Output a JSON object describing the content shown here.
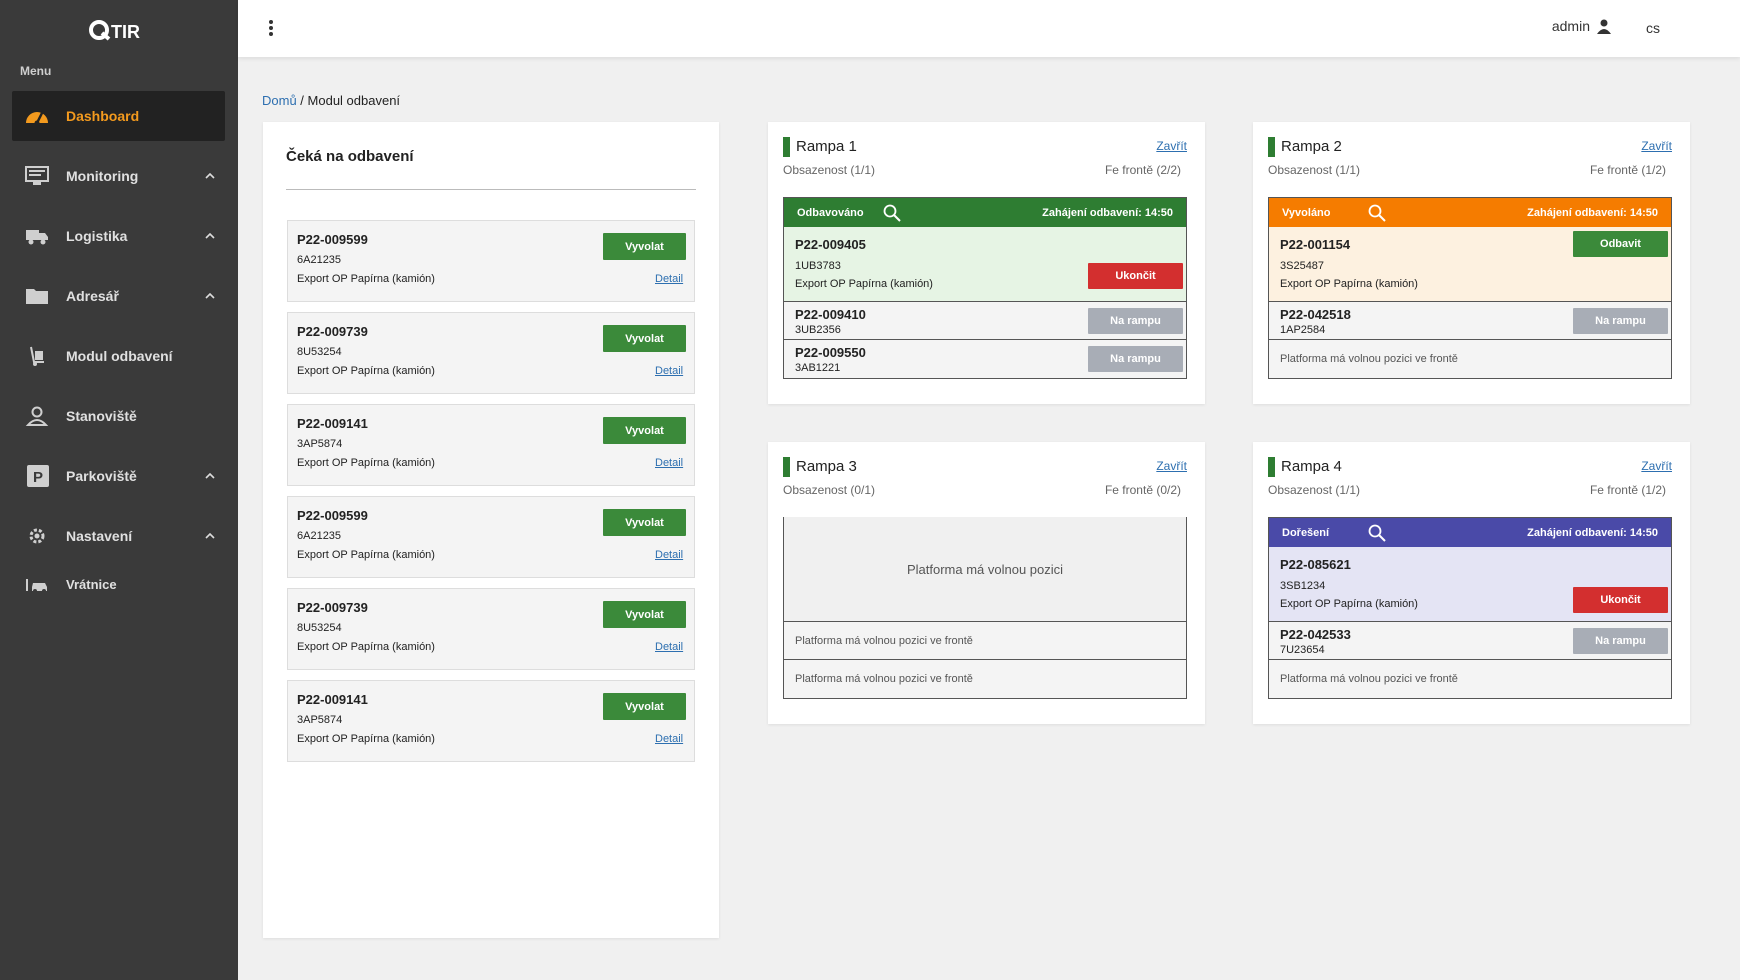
{
  "app": {
    "logo_text": "QTIR"
  },
  "sidebar": {
    "menu_label": "Menu",
    "items": [
      {
        "label": "Dashboard",
        "icon": "gauge-icon",
        "active": true,
        "expandable": false
      },
      {
        "label": "Monitoring",
        "icon": "monitor-icon",
        "expandable": true
      },
      {
        "label": "Logistika",
        "icon": "truck-icon",
        "expandable": true
      },
      {
        "label": "Adresář",
        "icon": "folder-icon",
        "expandable": true
      },
      {
        "label": "Modul odbavení",
        "icon": "hand-truck-icon",
        "expandable": false
      },
      {
        "label": "Stanoviště",
        "icon": "location-person-icon",
        "expandable": false
      },
      {
        "label": "Parkoviště",
        "icon": "parking-icon",
        "expandable": true
      },
      {
        "label": "Nastavení",
        "icon": "gear-icon",
        "expandable": true
      },
      {
        "label": "Vrátnice",
        "icon": "gate-car-icon",
        "expandable": false
      }
    ]
  },
  "topbar": {
    "user": "admin",
    "lang": "cs"
  },
  "breadcrumb": {
    "home": "Domů",
    "separator": " / ",
    "current": "Modul odbavení"
  },
  "waiting": {
    "title": "Čeká na odbavení",
    "call_label": "Vyvolat",
    "detail_label": "Detail",
    "items": [
      {
        "code": "P22-009599",
        "plate": "6A21235",
        "desc": "Export OP Papírna (kamión)"
      },
      {
        "code": "P22-009739",
        "plate": "8U53254",
        "desc": "Export OP Papírna (kamión)"
      },
      {
        "code": "P22-009141",
        "plate": "3AP5874",
        "desc": "Export OP Papírna (kamión)"
      },
      {
        "code": "P22-009599",
        "plate": "6A21235",
        "desc": "Export OP Papírna (kamión)"
      },
      {
        "code": "P22-009739",
        "plate": "8U53254",
        "desc": "Export OP Papírna (kamión)"
      },
      {
        "code": "P22-009141",
        "plate": "3AP5874",
        "desc": "Export OP Papírna (kamión)"
      }
    ]
  },
  "ramps": [
    {
      "name": "Rampa 1",
      "close": "Zavřít",
      "occupancy": "Obsazenost (1/1)",
      "queue": "Fe frontě (2/2)",
      "header_color": "#2e7d32",
      "status": "Odbavováno",
      "start": "Zahájení odbavení: 14:50",
      "active_bg": "#e6f4e4",
      "active": {
        "code": "P22-009405",
        "plate": "1UB3783",
        "desc": "Export OP Papírna (kamión)",
        "action": "Ukončit"
      },
      "queue_rows": [
        {
          "code": "P22-009410",
          "plate": "3UB2356",
          "action": "Na rampu"
        },
        {
          "code": "P22-009550",
          "plate": "3AB1221",
          "action": "Na rampu"
        }
      ]
    },
    {
      "name": "Rampa 2",
      "close": "Zavřít",
      "occupancy": "Obsazenost (1/1)",
      "queue": "Fe frontě (1/2)",
      "header_color": "#f57c00",
      "status": "Vyvoláno",
      "start": "Zahájení odbavení: 14:50",
      "active_bg": "#fdf1e0",
      "active": {
        "code": "P22-001154",
        "plate": "3S25487",
        "desc": "Export OP Papírna (kamión)",
        "action": "Odbavit"
      },
      "queue_rows": [
        {
          "code": "P22-042518",
          "plate": "1AP2584",
          "action": "Na rampu"
        },
        {
          "free": "Platforma má volnou pozici ve frontě"
        }
      ]
    },
    {
      "name": "Rampa 3",
      "close": "Zavřít",
      "occupancy": "Obsazenost (0/1)",
      "queue": "Fe frontě (0/2)",
      "free_main": "Platforma má volnou pozici",
      "queue_rows": [
        {
          "free": "Platforma má volnou pozici ve frontě"
        },
        {
          "free": "Platforma má volnou pozici ve frontě"
        }
      ]
    },
    {
      "name": "Rampa 4",
      "close": "Zavřít",
      "occupancy": "Obsazenost (1/1)",
      "queue": "Fe frontě (1/2)",
      "header_color": "#4a4aa8",
      "status": "Dořešení",
      "start": "Zahájení odbavení: 14:50",
      "active_bg": "#e4e4f4",
      "active": {
        "code": "P22-085621",
        "plate": "3SB1234",
        "desc": "Export OP Papírna (kamión)",
        "action": "Ukončit"
      },
      "queue_rows": [
        {
          "code": "P22-042533",
          "plate": "7U23654",
          "action": "Na rampu"
        },
        {
          "free": "Platforma má volnou pozici ve frontě"
        }
      ]
    }
  ]
}
